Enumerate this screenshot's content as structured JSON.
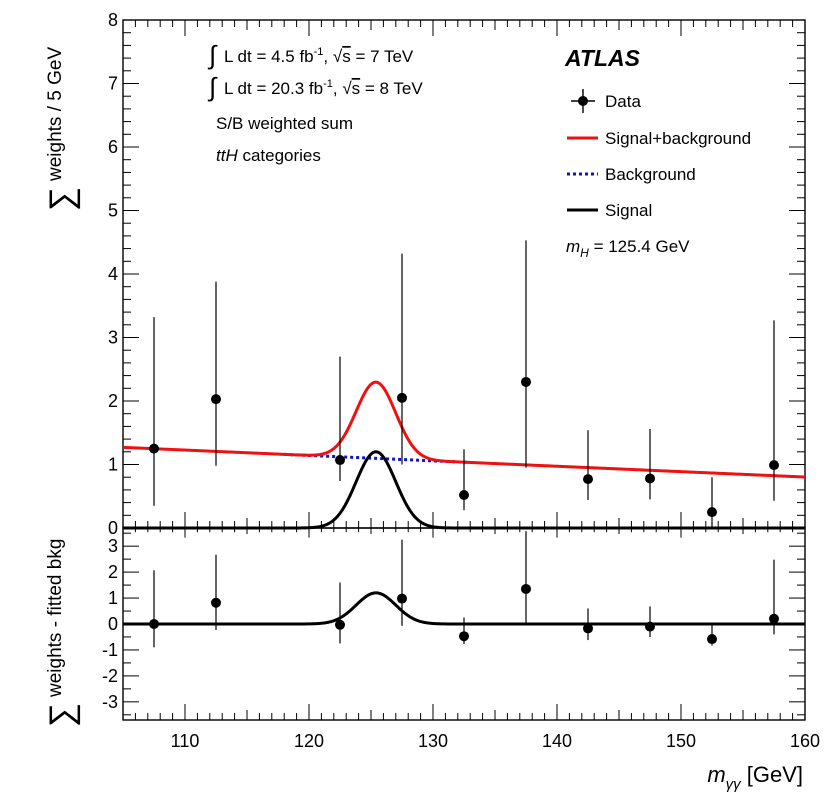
{
  "chart_data": [
    {
      "panel": "main",
      "type": "scatter",
      "ylabel_sigma": "∑",
      "ylabel": "weights / 5 GeV",
      "xlim": [
        105,
        160
      ],
      "ylim": [
        0,
        8
      ],
      "y_ticks": [
        0,
        1,
        2,
        3,
        4,
        5,
        6,
        7,
        8
      ],
      "annotations": {
        "lumi_7": {
          "pre": "L dt = 4.5 fb",
          "exp": "-1",
          "mid": ", ",
          "s": "s",
          "post": " = 7 TeV"
        },
        "lumi_8": {
          "pre": "L dt = 20.3 fb",
          "exp": "-1",
          "mid": ", ",
          "s": "s",
          "post": " = 8 TeV"
        },
        "weighting": "S/B weighted sum",
        "category_italic": "ttH",
        "category_rest": " categories",
        "experiment": "ATLAS",
        "mass_var": "m",
        "mass_sub": "H",
        "mass_value": " = 125.4 GeV"
      },
      "legend": [
        {
          "label": "Data",
          "style": "marker"
        },
        {
          "label": "Signal+background",
          "style": "solid",
          "color": "#ee1111"
        },
        {
          "label": "Background",
          "style": "dotted",
          "color": "#1111cc"
        },
        {
          "label": "Signal",
          "style": "solid",
          "color": "#000000"
        }
      ],
      "data": {
        "x": [
          107.5,
          112.5,
          122.5,
          127.5,
          132.5,
          137.5,
          142.5,
          147.5,
          152.5,
          157.5
        ],
        "y": [
          1.25,
          2.03,
          1.07,
          2.05,
          0.52,
          2.3,
          0.77,
          0.78,
          0.25,
          0.99
        ],
        "err_low": [
          0.9,
          1.05,
          0.33,
          1.05,
          0.24,
          1.35,
          0.33,
          0.33,
          0.25,
          0.56
        ],
        "err_high": [
          2.07,
          1.85,
          1.63,
          2.27,
          0.72,
          2.23,
          0.77,
          0.78,
          0.55,
          2.28
        ]
      },
      "model": {
        "background": {
          "at_105": 1.27,
          "slope_per_gev": -0.0085
        },
        "signal": {
          "peak_mass": 125.4,
          "peak_height": 1.2,
          "width": 1.6
        },
        "signal_plus_background_color": "#ee1111",
        "background_color": "#1111cc",
        "signal_color": "#000000"
      }
    },
    {
      "panel": "residual",
      "type": "scatter",
      "ylabel_sigma": "∑",
      "ylabel": "weights - fitted bkg",
      "xlabel_var": "m",
      "xlabel_sub": "γγ",
      "xlabel_unit": " [GeV]",
      "xlim": [
        105,
        160
      ],
      "ylim": [
        -3.7,
        3.7
      ],
      "x_ticks": [
        110,
        120,
        130,
        140,
        150,
        160
      ],
      "y_ticks": [
        -3,
        -2,
        -1,
        0,
        1,
        2,
        3
      ],
      "data": {
        "x": [
          107.5,
          112.5,
          122.5,
          127.5,
          132.5,
          137.5,
          142.5,
          147.5,
          152.5,
          157.5
        ],
        "y": [
          0.0,
          0.82,
          -0.03,
          0.98,
          -0.47,
          1.35,
          -0.17,
          -0.1,
          -0.58,
          0.2
        ],
        "err_low": [
          0.9,
          1.05,
          0.72,
          1.05,
          0.3,
          1.3,
          0.45,
          0.4,
          0.25,
          0.6
        ],
        "err_high": [
          2.07,
          1.85,
          1.63,
          2.27,
          0.72,
          2.23,
          0.77,
          0.78,
          0.55,
          2.28
        ]
      },
      "curve": {
        "name": "Signal",
        "color": "#000000"
      }
    }
  ]
}
